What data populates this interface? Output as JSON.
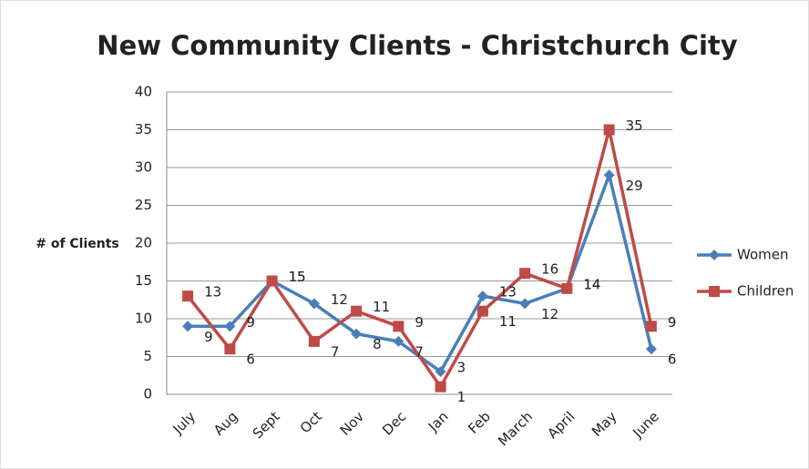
{
  "chart_data": {
    "type": "line",
    "title": "New Community Clients - Christchurch City",
    "y_label": "# of Clients",
    "categories": [
      "July",
      "Aug",
      "Sept",
      "Oct",
      "Nov",
      "Dec",
      "Jan",
      "Feb",
      "March",
      "April",
      "May",
      "June"
    ],
    "series": [
      {
        "name": "Women",
        "color": "#4a7ebb",
        "marker": "diamond",
        "values": [
          9,
          9,
          15,
          12,
          8,
          7,
          3,
          13,
          12,
          14,
          29,
          6
        ]
      },
      {
        "name": "Children",
        "color": "#be4b48",
        "marker": "square",
        "values": [
          13,
          6,
          15,
          7,
          11,
          9,
          1,
          11,
          16,
          14,
          35,
          9
        ]
      }
    ],
    "ylim": [
      0,
      40
    ],
    "yticks": [
      0,
      5,
      10,
      15,
      20,
      25,
      30,
      35,
      40
    ],
    "grid": true,
    "legend": "right"
  }
}
